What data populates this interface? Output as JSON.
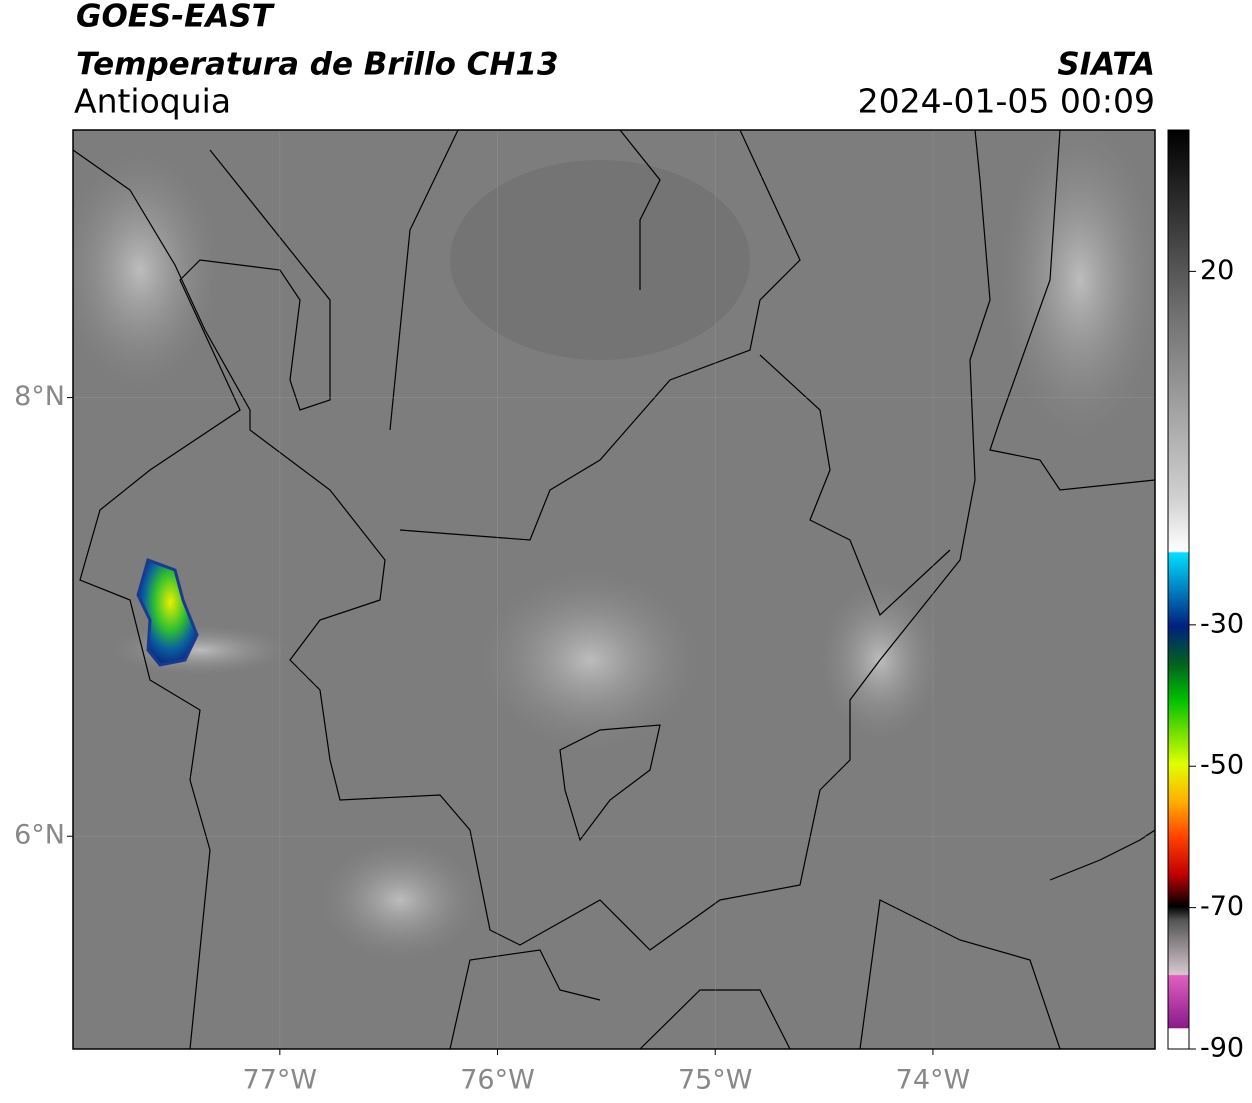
{
  "header": {
    "title": "GOES-EAST",
    "subtitle": "Temperatura de Brillo CH13",
    "region": "Antioquia",
    "source": "SIATA",
    "datetime": "2024-01-05 00:09"
  },
  "map": {
    "xlim": [
      -77.95,
      -72.98
    ],
    "ylim": [
      5.03,
      9.22
    ],
    "xticks": [
      {
        "value": -77,
        "label": "77°W"
      },
      {
        "value": -76,
        "label": "76°W"
      },
      {
        "value": -75,
        "label": "75°W"
      },
      {
        "value": -74,
        "label": "74°W"
      }
    ],
    "yticks": [
      {
        "value": 8,
        "label": "8°N"
      },
      {
        "value": 6,
        "label": "6°N"
      }
    ]
  },
  "colorbar": {
    "range": [
      -90,
      40
    ],
    "ticks": [
      20,
      -30,
      -50,
      -70,
      -90
    ]
  }
}
